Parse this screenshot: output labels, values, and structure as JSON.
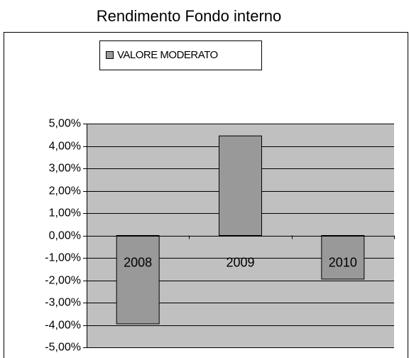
{
  "chart_data": {
    "type": "bar",
    "title": "Rendimento Fondo interno",
    "categories": [
      "2008",
      "2009",
      "2010"
    ],
    "series": [
      {
        "name": "VALORE MODERATO",
        "color": "#999999",
        "values": [
          -3.95,
          4.45,
          -1.95
        ]
      }
    ],
    "ylim": [
      -5,
      5
    ],
    "yticks": [
      {
        "value": -5,
        "label": "-5,00%"
      },
      {
        "value": -4,
        "label": "-4,00%"
      },
      {
        "value": -3,
        "label": "-3,00%"
      },
      {
        "value": -2,
        "label": "-2,00%"
      },
      {
        "value": -1,
        "label": "-1,00%"
      },
      {
        "value": 0,
        "label": "0,00%"
      },
      {
        "value": 1,
        "label": "1,00%"
      },
      {
        "value": 2,
        "label": "2,00%"
      },
      {
        "value": 3,
        "label": "3,00%"
      },
      {
        "value": 4,
        "label": "4,00%"
      },
      {
        "value": 5,
        "label": "5,00%"
      }
    ],
    "grid": true,
    "legend": "top"
  }
}
